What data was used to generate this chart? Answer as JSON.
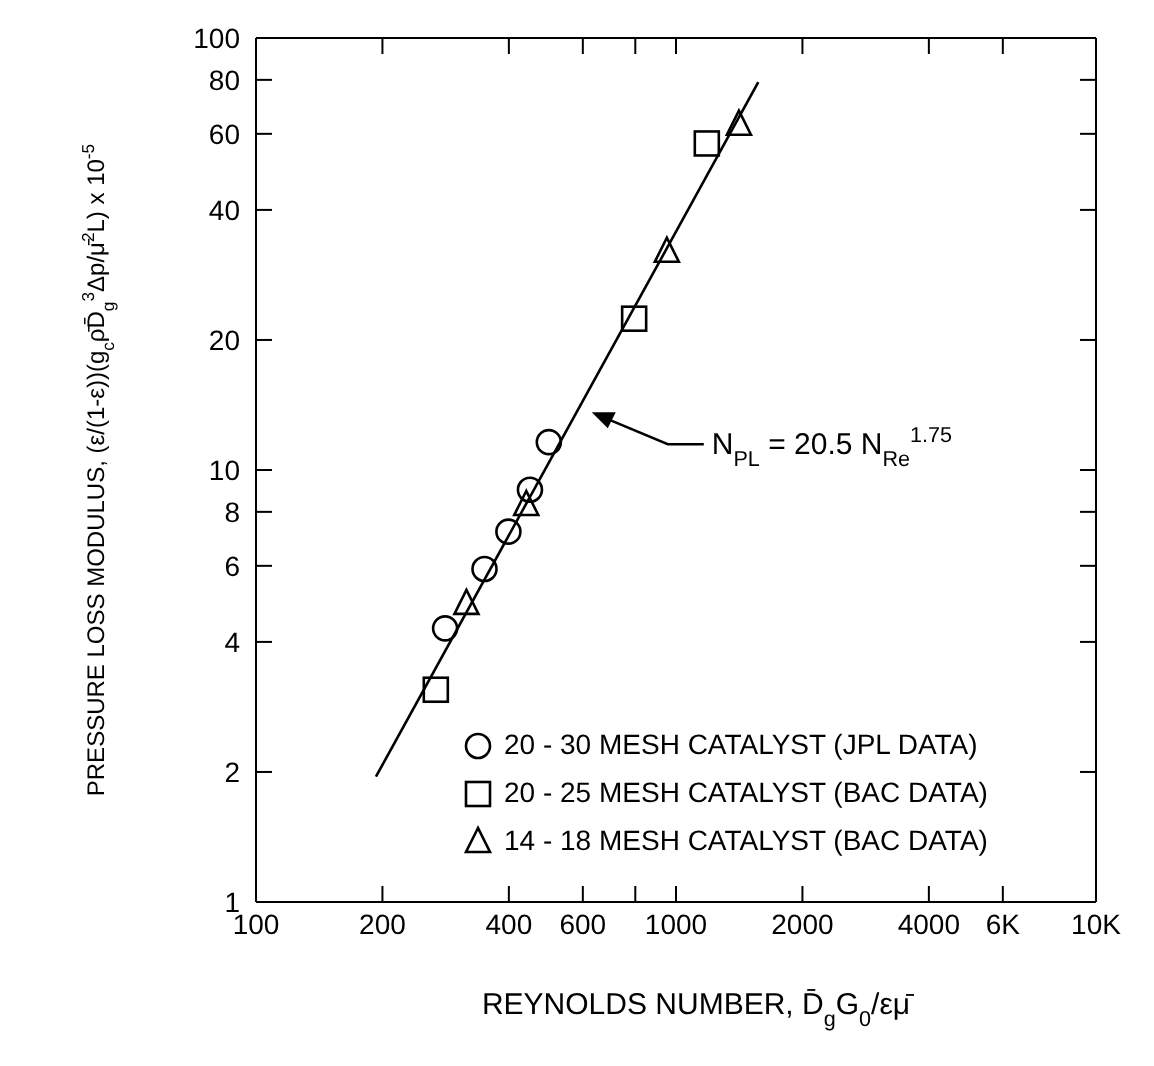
{
  "chart_data": {
    "type": "scatter",
    "xlabel": "REYNOLDS NUMBER, D̄$_{g}$G$_{0}$/εμ̄",
    "ylabel": "PRESSURE LOSS MODULUS, (ε/(1-ε))(g$_{c}$ρ̄D̄$_{g}$$^{3}$Δp/μ̄$^{2}$L) x 10$^{-5}$",
    "log": "xy",
    "xlim": [
      100,
      10000
    ],
    "ylim": [
      1,
      100
    ],
    "xticks": [
      100,
      200,
      400,
      600,
      {
        "value": 800,
        "label": null
      },
      1000,
      2000,
      4000,
      {
        "value": 6000,
        "label": "6K"
      },
      {
        "value": 10000,
        "label": "10K"
      }
    ],
    "yticks": [
      1,
      2,
      4,
      6,
      8,
      10,
      20,
      40,
      60,
      80,
      100
    ],
    "legend": "bottom right",
    "series": [
      {
        "name": "20 - 30 MESH CATALYST (JPL DATA)",
        "color": "#000000",
        "marker": "circle",
        "x": [
          282,
          350,
          399,
          449,
          498
        ],
        "values": [
          4.3,
          5.9,
          7.2,
          9.0,
          11.6
        ]
      },
      {
        "name": "20 - 25 MESH CATALYST (BAC DATA)",
        "color": "#000000",
        "marker": "square",
        "x": [
          268,
          795,
          1184
        ],
        "values": [
          3.1,
          22.4,
          57
        ]
      },
      {
        "name": "14 - 18 MESH CATALYST (BAC DATA)",
        "color": "#000000",
        "marker": "triangle",
        "x": [
          317,
          440,
          951,
          1412
        ],
        "values": [
          4.9,
          8.3,
          32,
          63
        ]
      },
      {
        "type": "line",
        "color": "#000000",
        "marker": "none",
        "line_style": "solid",
        "x": [
          193,
          1570
        ],
        "values": [
          1.95,
          79
        ]
      }
    ],
    "annotations": [
      "N$_{PL}$ = 20.5 N$_{Re}$$^{1.75}$"
    ]
  }
}
